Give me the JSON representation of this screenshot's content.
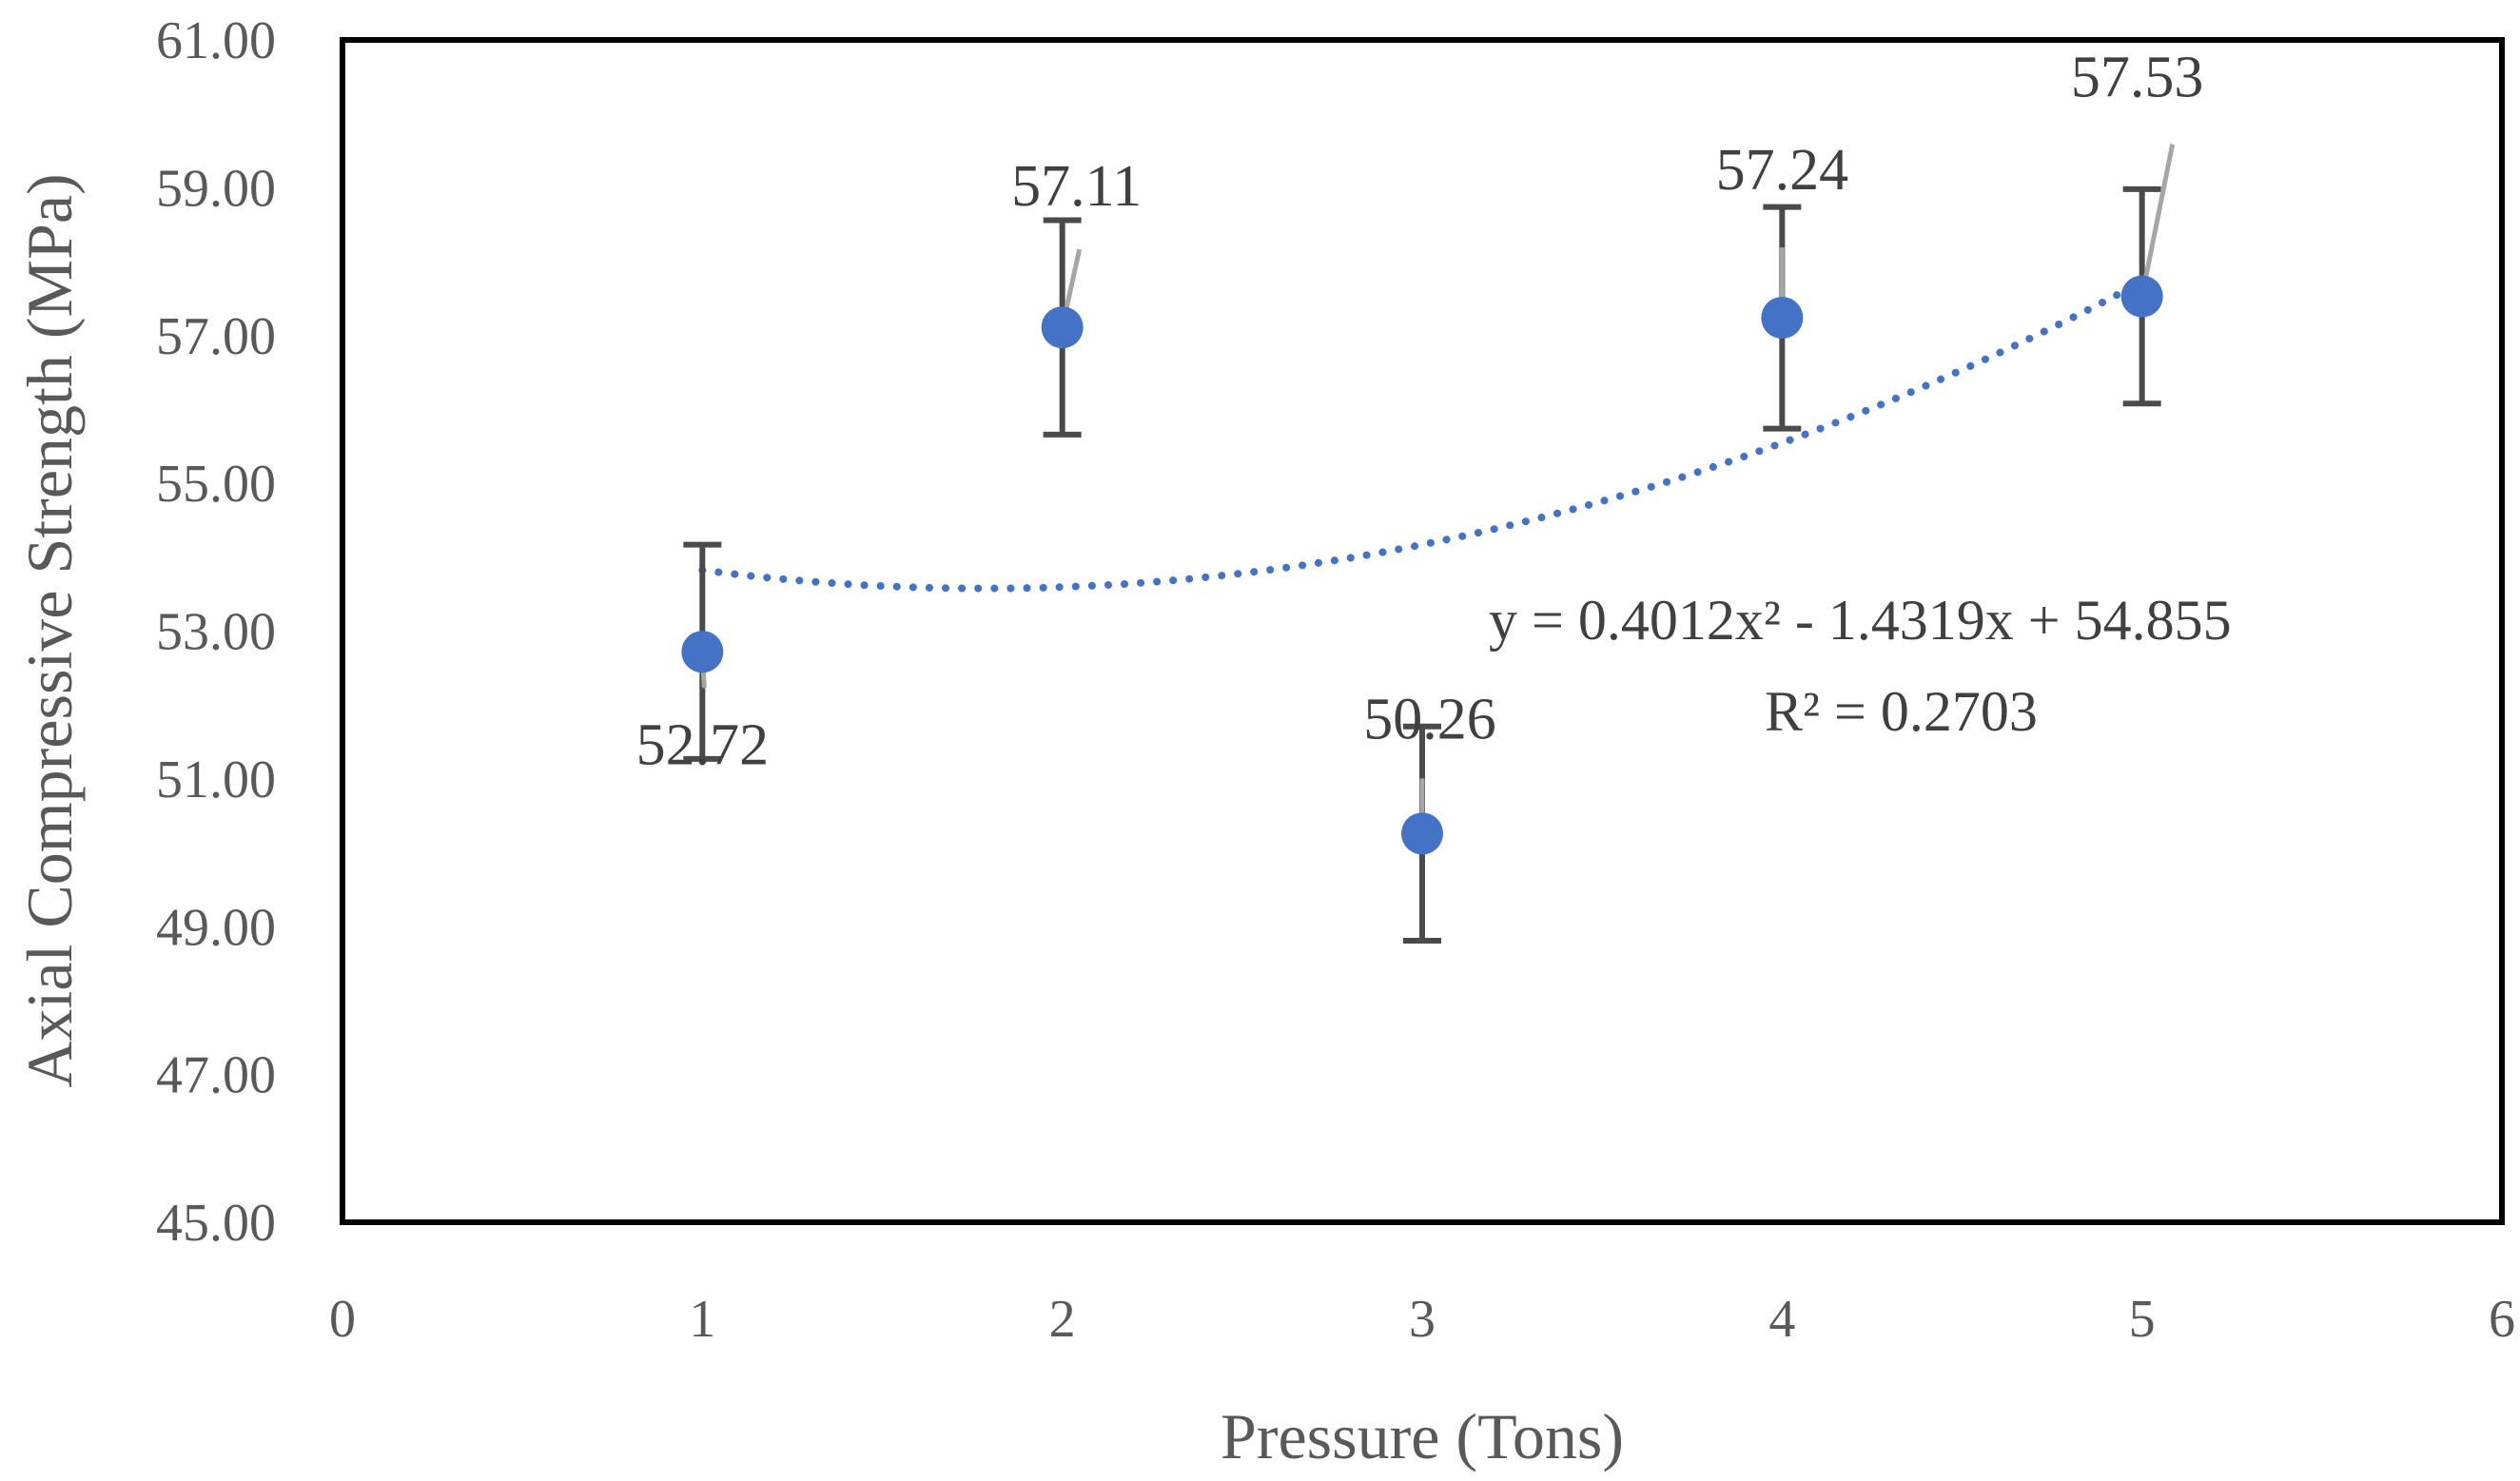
{
  "chart_data": {
    "type": "scatter",
    "title": "",
    "xlabel": "Pressure (Tons)",
    "ylabel": "Axial Compressive Strength (MPa)",
    "xlim": [
      0,
      6
    ],
    "ylim": [
      45,
      61
    ],
    "x_ticks": [
      "0",
      "1",
      "2",
      "3",
      "4",
      "5",
      "6"
    ],
    "y_ticks": [
      "45.00",
      "47.00",
      "49.00",
      "51.00",
      "53.00",
      "55.00",
      "57.00",
      "59.00",
      "61.00"
    ],
    "series": [
      {
        "name": "Axial Compressive Strength",
        "color": "#4472C4",
        "x": [
          1,
          2,
          3,
          4,
          5
        ],
        "y": [
          52.72,
          57.11,
          50.26,
          57.24,
          57.53
        ],
        "labels": [
          "52.72",
          "57.11",
          "50.26",
          "57.24",
          "57.53"
        ],
        "error": [
          1.45,
          1.45,
          1.45,
          1.5,
          1.45
        ]
      }
    ],
    "trendline": {
      "type": "polynomial-2",
      "coefficients": [
        0.4012,
        -1.4319,
        54.855
      ],
      "x_range": [
        1,
        5
      ],
      "equation": "y = 0.4012x² - 1.4319x + 54.855",
      "r_squared": "R² = 0.2703",
      "color": "#4472C4"
    },
    "grid": false,
    "legend": "none"
  }
}
